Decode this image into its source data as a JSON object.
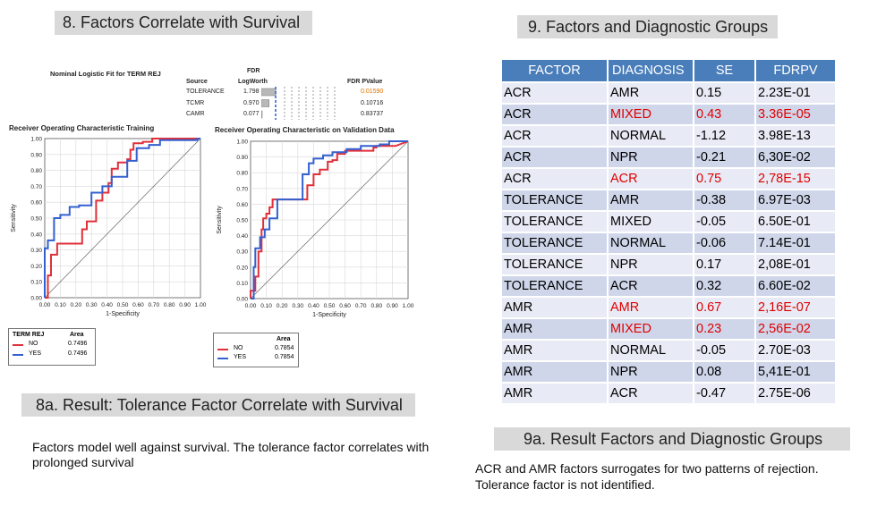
{
  "slide8": {
    "title": "8. Factors Correlate with Survival"
  },
  "slide9": {
    "title": "9. Factors and Diagnostic Groups"
  },
  "logistic_fit": {
    "title": "Nominal Logistic Fit for TERM REJ",
    "col_source": "Source",
    "col_fdr": "FDR",
    "col_logworth": "LogWorth",
    "col_pvalue": "FDR PValue",
    "rows": [
      {
        "source": "TOLERANCE",
        "logworth": "1.798",
        "pvalue": "0.01590",
        "logworth_num": 1.798
      },
      {
        "source": "TCMR",
        "logworth": "0.970",
        "pvalue": "0.10716",
        "logworth_num": 0.97
      },
      {
        "source": "CAMR",
        "logworth": "0.077",
        "pvalue": "0.83737",
        "logworth_num": 0.077
      }
    ],
    "pvalue_highlight_color": "#e07000"
  },
  "chart_data": [
    {
      "type": "line",
      "title": "Receiver Operating Characteristic Training",
      "xlabel": "1-Specificity",
      "ylabel": "Sensitivity",
      "xlim": [
        0,
        1
      ],
      "ylim": [
        0,
        1
      ],
      "ticks": [
        "0.00",
        "0.10",
        "0.20",
        "0.30",
        "0.40",
        "0.50",
        "0.60",
        "0.70",
        "0.80",
        "0.90",
        "1.00"
      ],
      "series": [
        {
          "name": "NO",
          "color": "#e0303a",
          "x": [
            0,
            0.02,
            0.02,
            0.04,
            0.04,
            0.08,
            0.08,
            0.24,
            0.24,
            0.27,
            0.27,
            0.33,
            0.33,
            0.37,
            0.37,
            0.41,
            0.41,
            0.43,
            0.43,
            0.47,
            0.47,
            0.53,
            0.53,
            0.55,
            0.55,
            0.57,
            0.57,
            0.63,
            0.63,
            0.69,
            0.69,
            1.0
          ],
          "y": [
            0,
            0,
            0.14,
            0.14,
            0.27,
            0.27,
            0.34,
            0.34,
            0.43,
            0.43,
            0.48,
            0.48,
            0.61,
            0.61,
            0.66,
            0.66,
            0.72,
            0.72,
            0.81,
            0.81,
            0.85,
            0.85,
            0.87,
            0.87,
            0.93,
            0.93,
            0.97,
            0.97,
            0.98,
            0.98,
            1.0,
            1.0
          ]
        },
        {
          "name": "YES",
          "color": "#3360d0",
          "x": [
            0,
            0,
            0.02,
            0.02,
            0.06,
            0.06,
            0.1,
            0.1,
            0.16,
            0.16,
            0.22,
            0.22,
            0.3,
            0.3,
            0.37,
            0.37,
            0.43,
            0.43,
            0.53,
            0.53,
            0.59,
            0.59,
            0.67,
            0.67,
            0.74,
            0.74,
            0.98,
            0.98,
            1.0
          ],
          "y": [
            0,
            0.31,
            0.31,
            0.36,
            0.36,
            0.5,
            0.5,
            0.52,
            0.52,
            0.57,
            0.57,
            0.58,
            0.58,
            0.66,
            0.66,
            0.7,
            0.7,
            0.76,
            0.76,
            0.86,
            0.86,
            0.94,
            0.94,
            0.96,
            0.96,
            0.99,
            0.99,
            1.0,
            1.0
          ]
        }
      ],
      "legend": {
        "title": "TERM REJ",
        "area_label": "Area",
        "entries": [
          {
            "name": "NO",
            "area": "0.7496"
          },
          {
            "name": "YES",
            "area": "0.7496"
          }
        ]
      }
    },
    {
      "type": "line",
      "title": "Receiver Operating Characteristic on Validation Data",
      "xlabel": "1-Specificity",
      "ylabel": "Sensitivity",
      "xlim": [
        0,
        1
      ],
      "ylim": [
        0,
        1
      ],
      "ticks": [
        "0.00",
        "0.10",
        "0.20",
        "0.30",
        "0.40",
        "0.50",
        "0.60",
        "0.70",
        "0.80",
        "0.90",
        "1.00"
      ],
      "series": [
        {
          "name": "NO",
          "color": "#e0303a",
          "x": [
            0,
            0,
            0.03,
            0.03,
            0.05,
            0.05,
            0.07,
            0.07,
            0.08,
            0.08,
            0.1,
            0.1,
            0.12,
            0.12,
            0.14,
            0.14,
            0.36,
            0.36,
            0.4,
            0.4,
            0.44,
            0.44,
            0.49,
            0.49,
            0.52,
            0.52,
            0.55,
            0.55,
            0.6,
            0.6,
            0.78,
            0.78,
            0.8,
            0.8,
            0.92,
            1.0
          ],
          "y": [
            0,
            0.05,
            0.05,
            0.14,
            0.14,
            0.3,
            0.3,
            0.44,
            0.44,
            0.51,
            0.51,
            0.54,
            0.54,
            0.58,
            0.58,
            0.63,
            0.63,
            0.72,
            0.72,
            0.79,
            0.79,
            0.82,
            0.82,
            0.87,
            0.87,
            0.88,
            0.88,
            0.92,
            0.92,
            0.94,
            0.94,
            0.96,
            0.96,
            0.97,
            0.97,
            1.0
          ]
        },
        {
          "name": "YES",
          "color": "#3360d0",
          "x": [
            0,
            0.02,
            0.02,
            0.03,
            0.03,
            0.06,
            0.06,
            0.09,
            0.09,
            0.12,
            0.12,
            0.17,
            0.17,
            0.33,
            0.33,
            0.37,
            0.37,
            0.4,
            0.4,
            0.46,
            0.46,
            0.52,
            0.52,
            0.61,
            0.61,
            0.7,
            0.7,
            0.82,
            0.82,
            0.88,
            0.88,
            1.0
          ],
          "y": [
            0,
            0,
            0.2,
            0.2,
            0.32,
            0.32,
            0.39,
            0.39,
            0.44,
            0.44,
            0.51,
            0.51,
            0.63,
            0.63,
            0.79,
            0.79,
            0.86,
            0.86,
            0.89,
            0.89,
            0.91,
            0.91,
            0.93,
            0.93,
            0.95,
            0.95,
            0.97,
            0.97,
            0.98,
            0.98,
            1.0,
            1.0
          ]
        }
      ],
      "legend": {
        "title": "",
        "area_label": "Area",
        "entries": [
          {
            "name": "NO",
            "area": "0.7854"
          },
          {
            "name": "YES",
            "area": "0.7854"
          }
        ]
      }
    }
  ],
  "result8a": {
    "title": "8a. Result: Tolerance Factor Correlate with Survival",
    "text": "Factors model well against survival. The tolerance factor correlates with prolonged survival"
  },
  "table": {
    "headers": [
      "FACTOR",
      "DIAGNOSIS",
      "SE",
      "FDRPV"
    ],
    "rows": [
      {
        "factor": "ACR",
        "diagnosis": "AMR",
        "se": "0.15",
        "fdrpv": "2.23E-01",
        "highlight": false
      },
      {
        "factor": "ACR",
        "diagnosis": "MIXED",
        "se": "0.43",
        "fdrpv": "3.36E-05",
        "highlight": true
      },
      {
        "factor": "ACR",
        "diagnosis": "NORMAL",
        "se": "-1.12",
        "fdrpv": "3.98E-13",
        "highlight": false
      },
      {
        "factor": "ACR",
        "diagnosis": "NPR",
        "se": "-0.21",
        "fdrpv": "6,30E-02",
        "highlight": false
      },
      {
        "factor": "ACR",
        "diagnosis": "ACR",
        "se": "0.75",
        "fdrpv": "2,78E-15",
        "highlight": true
      },
      {
        "factor": "TOLERANCE",
        "diagnosis": "AMR",
        "se": "-0.38",
        "fdrpv": "6.97E-03",
        "highlight": false
      },
      {
        "factor": "TOLERANCE",
        "diagnosis": "MIXED",
        "se": "-0.05",
        "fdrpv": "6.50E-01",
        "highlight": false
      },
      {
        "factor": "TOLERANCE",
        "diagnosis": "NORMAL",
        "se": "-0.06",
        "fdrpv": "7.14E-01",
        "highlight": false
      },
      {
        "factor": "TOLERANCE",
        "diagnosis": "NPR",
        "se": "0.17",
        "fdrpv": "2,08E-01",
        "highlight": false
      },
      {
        "factor": "TOLERANCE",
        "diagnosis": "ACR",
        "se": "0.32",
        "fdrpv": "6.60E-02",
        "highlight": false
      },
      {
        "factor": "AMR",
        "diagnosis": "AMR",
        "se": "0.67",
        "fdrpv": "2,16E-07",
        "highlight": true
      },
      {
        "factor": "AMR",
        "diagnosis": "MIXED",
        "se": "0.23",
        "fdrpv": "2,56E-02",
        "highlight": true
      },
      {
        "factor": "AMR",
        "diagnosis": "NORMAL",
        "se": "-0.05",
        "fdrpv": "2.70E-03",
        "highlight": false
      },
      {
        "factor": "AMR",
        "diagnosis": "NPR",
        "se": "0.08",
        "fdrpv": "5,41E-01",
        "highlight": false
      },
      {
        "factor": "AMR",
        "diagnosis": "ACR",
        "se": "-0.47",
        "fdrpv": "2.75E-06",
        "highlight": false
      }
    ]
  },
  "result9a": {
    "title": "9a. Result Factors and Diagnostic Groups",
    "line1": "ACR  and AMR factors surrogates for two patterns of rejection.",
    "line2": "Tolerance factor is not identified."
  }
}
